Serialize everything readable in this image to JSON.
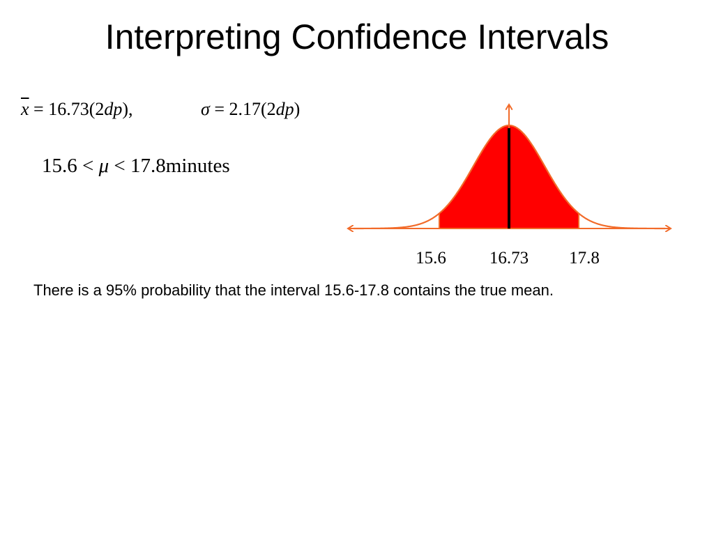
{
  "title": "Interpreting Confidence Intervals",
  "stats": {
    "xbar_symbol": "x",
    "xbar_eq": " = 16.73(2",
    "dp": "dp",
    "close1": "),",
    "sigma_symbol": "σ",
    "sigma_eq": " = 2.17(2",
    "close2": ")"
  },
  "interval": {
    "lower": "15.6 < ",
    "mu": "μ",
    "upper": " < 17.8minutes"
  },
  "chart_data": {
    "type": "area",
    "mean": 16.73,
    "ci_lower": 15.6,
    "ci_upper": 17.8,
    "tick_labels": [
      "15.6",
      "16.73",
      "17.8"
    ],
    "fill_color": "#ff0000",
    "curve_color": "#f26b2a",
    "mean_line_color": "#000000"
  },
  "explanation": "There is a 95% probability that the interval 15.6-17.8 contains the true mean."
}
